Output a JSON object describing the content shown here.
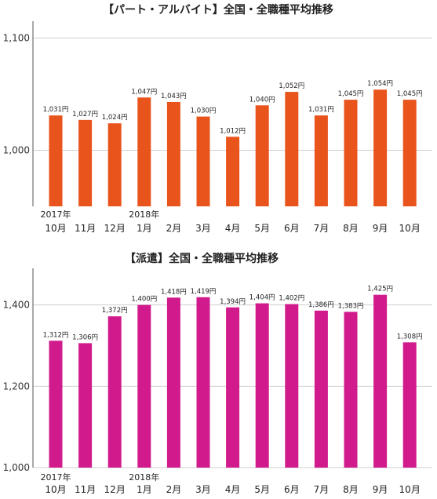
{
  "chart_data": [
    {
      "type": "bar",
      "title": "【パート・アルバイト】全国・全職種平均推移",
      "categories": [
        "10月",
        "11月",
        "12月",
        "1月",
        "2月",
        "3月",
        "4月",
        "5月",
        "6月",
        "7月",
        "8月",
        "9月",
        "10月"
      ],
      "year_labels": [
        {
          "index": 0,
          "text": "2017年"
        },
        {
          "index": 3,
          "text": "2018年"
        }
      ],
      "values": [
        1031,
        1027,
        1024,
        1047,
        1043,
        1030,
        1012,
        1040,
        1052,
        1031,
        1045,
        1054,
        1045
      ],
      "data_labels": [
        "1,031円",
        "1,027円",
        "1,024円",
        "1,047円",
        "1,043円",
        "1,030円",
        "1,012円",
        "1,040円",
        "1,052円",
        "1,031円",
        "1,045円",
        "1,054円",
        "1,045円"
      ],
      "ylim": [
        950,
        1115
      ],
      "yticks": [
        {
          "value": 1000,
          "label": "1,000"
        },
        {
          "value": 1100,
          "label": "1,100"
        }
      ],
      "grid": true,
      "color": "#e8541c"
    },
    {
      "type": "bar",
      "title": "【派遣】全国・全職種平均推移",
      "categories": [
        "10月",
        "11月",
        "12月",
        "1月",
        "2月",
        "3月",
        "4月",
        "5月",
        "6月",
        "7月",
        "8月",
        "9月",
        "10月"
      ],
      "year_labels": [
        {
          "index": 0,
          "text": "2017年"
        },
        {
          "index": 3,
          "text": "2018年"
        }
      ],
      "values": [
        1312,
        1306,
        1372,
        1400,
        1418,
        1419,
        1394,
        1404,
        1402,
        1386,
        1383,
        1425,
        1308
      ],
      "data_labels": [
        "1,312円",
        "1,306円",
        "1,372円",
        "1,400円",
        "1,418円",
        "1,419円",
        "1,394円",
        "1,404円",
        "1,402円",
        "1,386円",
        "1,383円",
        "1,425円",
        "1,308円"
      ],
      "ylim": [
        1000,
        1490
      ],
      "yticks": [
        {
          "value": 1000,
          "label": "1,000"
        },
        {
          "value": 1200,
          "label": "1,200"
        },
        {
          "value": 1400,
          "label": "1,400"
        }
      ],
      "grid": true,
      "color": "#d11b8c"
    }
  ]
}
